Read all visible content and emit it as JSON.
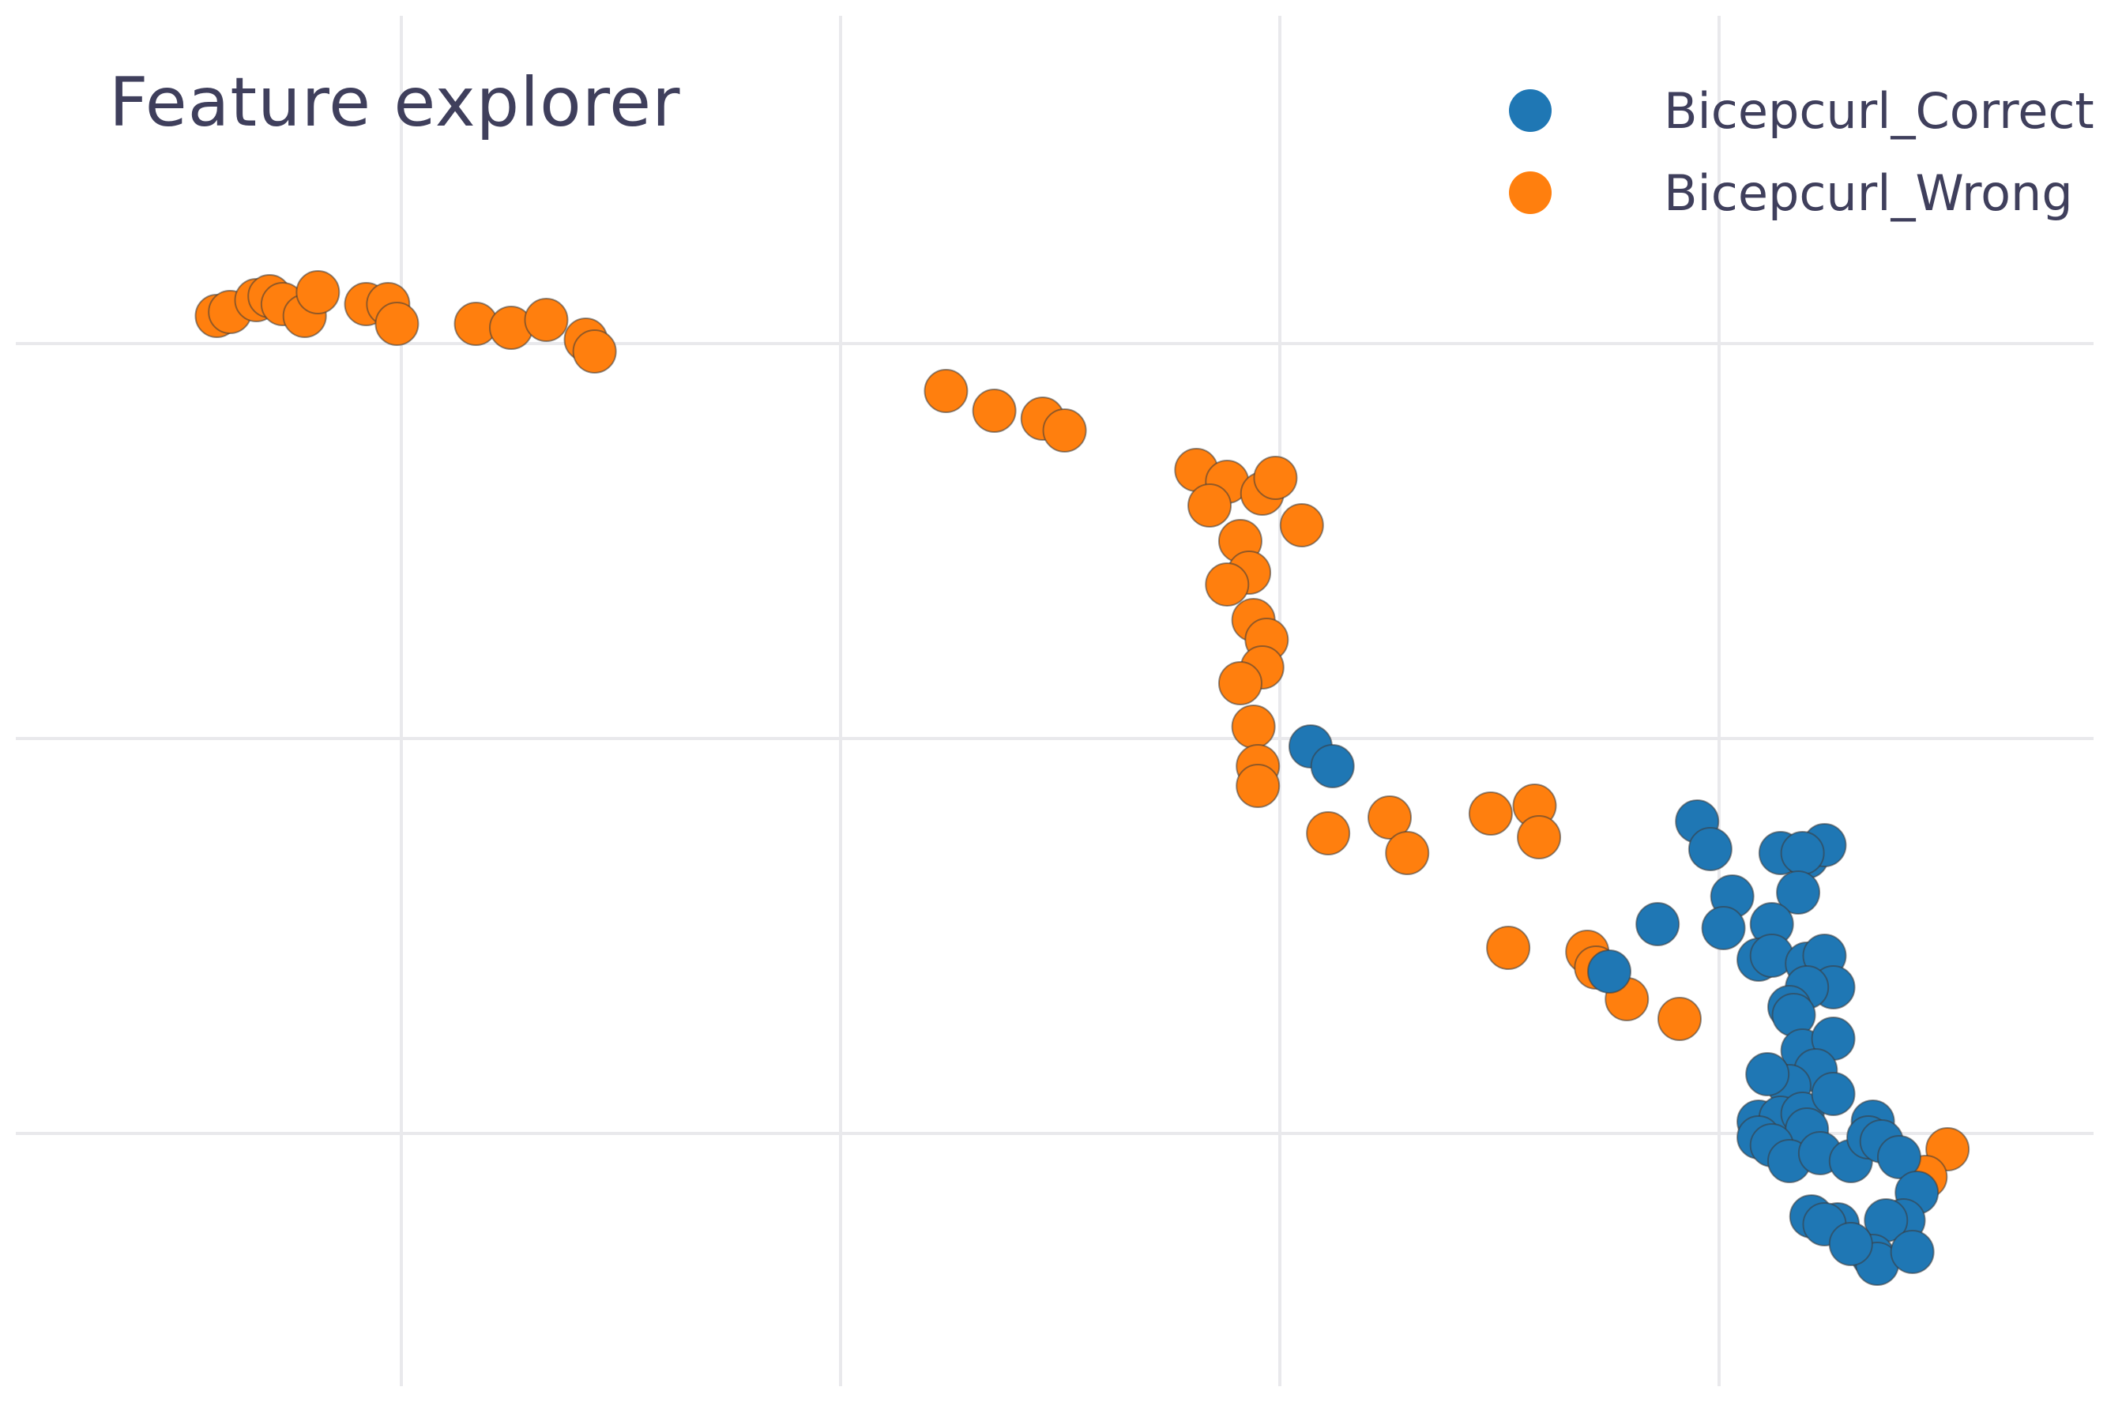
{
  "chart_data": {
    "type": "scatter",
    "title": "Feature explorer",
    "xlabel": "",
    "ylabel": "",
    "xlim": [
      -0.9,
      3.85
    ],
    "ylim": [
      -1.4,
      1.5
    ],
    "grid": true,
    "legend_position": "top-right",
    "series": [
      {
        "name": "Bicepcurl_Correct",
        "color": "#1f77b4",
        "x": [
          2.07,
          2.12,
          2.95,
          2.98,
          3.03,
          2.86,
          3.14,
          3.2,
          3.24,
          3.19,
          3.18,
          3.12,
          3.01,
          3.09,
          3.12,
          3.2,
          3.24,
          3.26,
          3.2,
          3.16,
          3.17,
          3.19,
          3.26,
          3.22,
          3.16,
          3.11,
          3.09,
          3.14,
          3.19,
          3.26,
          3.2,
          3.09,
          3.12,
          3.16,
          3.23,
          3.3,
          3.35,
          3.34,
          3.37,
          3.41,
          3.45,
          3.42,
          3.38,
          3.27,
          3.21,
          3.24,
          3.35,
          3.36,
          3.3,
          3.44,
          2.75
        ],
        "y": [
          -0.02,
          -0.07,
          -0.21,
          -0.28,
          -0.4,
          -0.47,
          -0.29,
          -0.3,
          -0.27,
          -0.29,
          -0.39,
          -0.47,
          -0.48,
          -0.56,
          -0.55,
          -0.57,
          -0.55,
          -0.63,
          -0.63,
          -0.68,
          -0.7,
          -0.79,
          -0.76,
          -0.84,
          -0.88,
          -0.85,
          -0.97,
          -0.96,
          -0.95,
          -0.9,
          -0.99,
          -1.01,
          -1.03,
          -1.07,
          -1.05,
          -1.07,
          -0.97,
          -1.01,
          -1.02,
          -1.06,
          -1.15,
          -1.22,
          -1.22,
          -1.23,
          -1.21,
          -1.23,
          -1.31,
          -1.33,
          -1.28,
          -1.3,
          -0.59
        ]
      },
      {
        "name": "Bicepcurl_Wrong",
        "color": "#ff7f0e",
        "x": [
          -0.42,
          -0.39,
          -0.33,
          -0.3,
          -0.27,
          -0.22,
          -0.19,
          -0.08,
          -0.03,
          -0.01,
          0.17,
          0.25,
          0.33,
          0.42,
          0.44,
          1.24,
          1.35,
          1.46,
          1.51,
          1.81,
          1.88,
          1.96,
          1.99,
          2.05,
          1.91,
          1.93,
          1.88,
          1.94,
          1.97,
          1.96,
          1.91,
          1.94,
          1.95,
          1.95,
          2.11,
          2.25,
          2.29,
          2.48,
          2.58,
          2.59,
          2.7,
          2.72,
          2.79,
          2.91,
          3.52,
          3.47,
          2.52,
          1.84
        ],
        "y": [
          1.07,
          1.08,
          1.11,
          1.12,
          1.1,
          1.07,
          1.13,
          1.1,
          1.1,
          1.05,
          1.05,
          1.04,
          1.06,
          1.01,
          0.98,
          0.88,
          0.83,
          0.81,
          0.78,
          0.68,
          0.65,
          0.62,
          0.66,
          0.54,
          0.5,
          0.42,
          0.39,
          0.3,
          0.25,
          0.18,
          0.14,
          0.03,
          -0.07,
          -0.12,
          -0.24,
          -0.2,
          -0.29,
          -0.19,
          -0.17,
          -0.25,
          -0.54,
          -0.58,
          -0.66,
          -0.71,
          -1.04,
          -1.11,
          -0.53,
          0.59
        ]
      }
    ]
  }
}
